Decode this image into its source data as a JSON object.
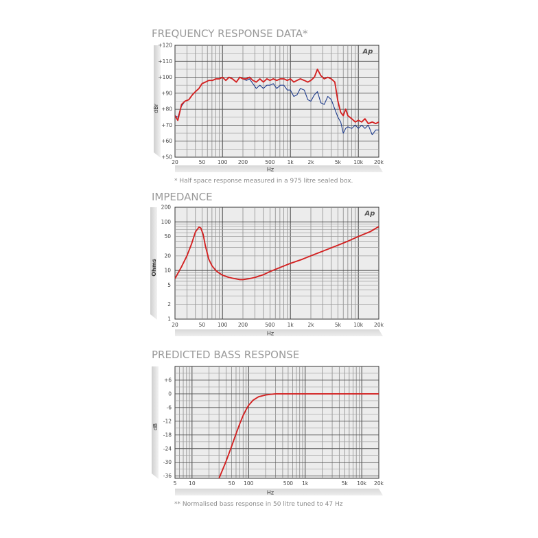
{
  "chart_data": [
    {
      "type": "line",
      "title": "FREQUENCY RESPONSE DATA*",
      "xlabel": "Hz",
      "ylabel": "dBr",
      "logo": "Ap",
      "note": "* Half space response measured in a 975 litre sealed box.",
      "x_scale": "log",
      "xlim": [
        20,
        20000
      ],
      "ylim": [
        50,
        120
      ],
      "grid": true,
      "x_ticks": [
        {
          "value": 20,
          "label": "20"
        },
        {
          "value": 50,
          "label": "50"
        },
        {
          "value": 100,
          "label": "100"
        },
        {
          "value": 200,
          "label": "200"
        },
        {
          "value": 500,
          "label": "500"
        },
        {
          "value": 1000,
          "label": "1k"
        },
        {
          "value": 2000,
          "label": "2k"
        },
        {
          "value": 5000,
          "label": "5k"
        },
        {
          "value": 10000,
          "label": "10k"
        },
        {
          "value": 20000,
          "label": "20k"
        }
      ],
      "y_ticks": [
        {
          "value": 120,
          "label": "+120"
        },
        {
          "value": 110,
          "label": "+110"
        },
        {
          "value": 100,
          "label": "+100"
        },
        {
          "value": 90,
          "label": "+90"
        },
        {
          "value": 80,
          "label": "+80"
        },
        {
          "value": 70,
          "label": "+70"
        },
        {
          "value": 60,
          "label": "+60"
        },
        {
          "value": 50,
          "label": "+50"
        }
      ],
      "series": [
        {
          "color": "#1f3c8c",
          "x": [
            20,
            22,
            25,
            28,
            32,
            36,
            40,
            45,
            50,
            56,
            63,
            71,
            80,
            90,
            100,
            112,
            125,
            140,
            160,
            180,
            200,
            225,
            250,
            280,
            315,
            355,
            400,
            450,
            500,
            560,
            630,
            710,
            800,
            900,
            1000,
            1120,
            1250,
            1400,
            1600,
            1800,
            2000,
            2250,
            2500,
            2800,
            3150,
            3550,
            4000,
            4500,
            5000,
            5500,
            6000,
            6500,
            7000,
            8000,
            9000,
            10000,
            11200,
            12500,
            14000,
            16000,
            18000,
            20000
          ],
          "y": [
            76,
            75,
            82,
            85,
            86,
            89,
            91,
            93,
            96,
            97,
            98,
            98,
            99,
            99,
            100,
            98,
            100,
            99,
            97,
            100,
            99,
            98,
            99,
            96,
            93,
            95,
            93,
            95,
            95,
            96,
            93,
            95,
            95,
            92,
            92,
            88,
            89,
            93,
            92,
            86,
            85,
            89,
            91,
            84,
            83,
            88,
            86,
            80,
            75,
            72,
            65,
            68,
            69,
            68,
            70,
            68,
            70,
            68,
            70,
            64,
            67,
            67
          ]
        },
        {
          "color": "#d32222",
          "x": [
            20,
            22,
            25,
            28,
            32,
            36,
            40,
            45,
            50,
            56,
            63,
            71,
            80,
            90,
            100,
            112,
            125,
            140,
            160,
            180,
            200,
            225,
            250,
            280,
            315,
            355,
            400,
            450,
            500,
            560,
            630,
            710,
            800,
            900,
            1000,
            1120,
            1250,
            1400,
            1600,
            1800,
            2000,
            2250,
            2500,
            2800,
            3150,
            3550,
            4000,
            4500,
            5000,
            5500,
            6000,
            6500,
            7000,
            8000,
            9000,
            10000,
            11200,
            12500,
            14000,
            16000,
            18000,
            20000
          ],
          "y": [
            76,
            73,
            83,
            85,
            86,
            89,
            91,
            93,
            96,
            97,
            98,
            98,
            99,
            99,
            100,
            98,
            100,
            99,
            97,
            100,
            99,
            99,
            100,
            98,
            97,
            99,
            97,
            99,
            98,
            99,
            98,
            99,
            99,
            98,
            99,
            97,
            98,
            99,
            98,
            97,
            98,
            100,
            105,
            101,
            99,
            100,
            99,
            97,
            85,
            78,
            76,
            80,
            76,
            74,
            72,
            73,
            72,
            74,
            71,
            72,
            71,
            72
          ]
        }
      ]
    },
    {
      "type": "line",
      "title": "IMPEDANCE",
      "xlabel": "Hz",
      "ylabel": "Ohms",
      "logo": "Ap",
      "x_scale": "log",
      "y_scale": "log",
      "xlim": [
        20,
        20000
      ],
      "ylim": [
        1,
        200
      ],
      "grid": true,
      "x_ticks": [
        {
          "value": 20,
          "label": "20"
        },
        {
          "value": 50,
          "label": "50"
        },
        {
          "value": 100,
          "label": "100"
        },
        {
          "value": 200,
          "label": "200"
        },
        {
          "value": 500,
          "label": "500"
        },
        {
          "value": 1000,
          "label": "1k"
        },
        {
          "value": 2000,
          "label": "2k"
        },
        {
          "value": 5000,
          "label": "5k"
        },
        {
          "value": 10000,
          "label": "10k"
        },
        {
          "value": 20000,
          "label": "20k"
        }
      ],
      "y_ticks": [
        {
          "value": 200,
          "label": "200"
        },
        {
          "value": 100,
          "label": "100"
        },
        {
          "value": 50,
          "label": "50"
        },
        {
          "value": 20,
          "label": "20"
        },
        {
          "value": 10,
          "label": "10"
        },
        {
          "value": 5,
          "label": "5"
        },
        {
          "value": 2,
          "label": "2"
        },
        {
          "value": 1,
          "label": "1"
        }
      ],
      "series": [
        {
          "color": "#d32222",
          "x": [
            20,
            25,
            30,
            35,
            40,
            45,
            48,
            52,
            56,
            63,
            70,
            80,
            90,
            100,
            125,
            150,
            180,
            200,
            250,
            300,
            400,
            500,
            700,
            1000,
            1500,
            2000,
            3000,
            5000,
            7000,
            10000,
            15000,
            20000
          ],
          "y": [
            6.8,
            12,
            20,
            35,
            62,
            78,
            75,
            55,
            32,
            17,
            12.5,
            10,
            8.8,
            8,
            7.2,
            6.8,
            6.5,
            6.5,
            6.8,
            7.2,
            8.2,
            9.5,
            11.5,
            14,
            17,
            20,
            25,
            33,
            40,
            50,
            63,
            80
          ]
        }
      ]
    },
    {
      "type": "line",
      "title": "PREDICTED BASS RESPONSE",
      "xlabel": "Hz",
      "ylabel": "dB",
      "note": "** Normalised bass response in 50 litre tuned to 47 Hz",
      "x_scale": "log",
      "xlim": [
        5,
        20000
      ],
      "ylim": [
        -37,
        12
      ],
      "grid": true,
      "x_ticks": [
        {
          "value": 5,
          "label": "5"
        },
        {
          "value": 10,
          "label": "10"
        },
        {
          "value": 50,
          "label": "50"
        },
        {
          "value": 100,
          "label": "100"
        },
        {
          "value": 500,
          "label": "500"
        },
        {
          "value": 1000,
          "label": "1k"
        },
        {
          "value": 5000,
          "label": "5k"
        },
        {
          "value": 10000,
          "label": "10k"
        },
        {
          "value": 20000,
          "label": "20k"
        }
      ],
      "y_ticks": [
        {
          "value": 6,
          "label": "+6"
        },
        {
          "value": 0,
          "label": "0"
        },
        {
          "value": -6,
          "label": "-6"
        },
        {
          "value": -12,
          "label": "-12"
        },
        {
          "value": -18,
          "label": "-18"
        },
        {
          "value": -24,
          "label": "-24"
        },
        {
          "value": -30,
          "label": "-30"
        },
        {
          "value": -36,
          "label": "-36"
        }
      ],
      "series": [
        {
          "color": "#d32222",
          "x": [
            30,
            35,
            40,
            50,
            60,
            70,
            80,
            90,
            100,
            120,
            150,
            200,
            250,
            300,
            400,
            500,
            1000,
            2000,
            5000,
            10000,
            20000
          ],
          "y": [
            -37,
            -33,
            -29.5,
            -23,
            -17.5,
            -13,
            -9.5,
            -7,
            -5,
            -2.8,
            -1.3,
            -0.5,
            -0.2,
            0,
            0,
            0,
            0,
            0,
            0,
            0,
            0
          ]
        }
      ]
    }
  ]
}
